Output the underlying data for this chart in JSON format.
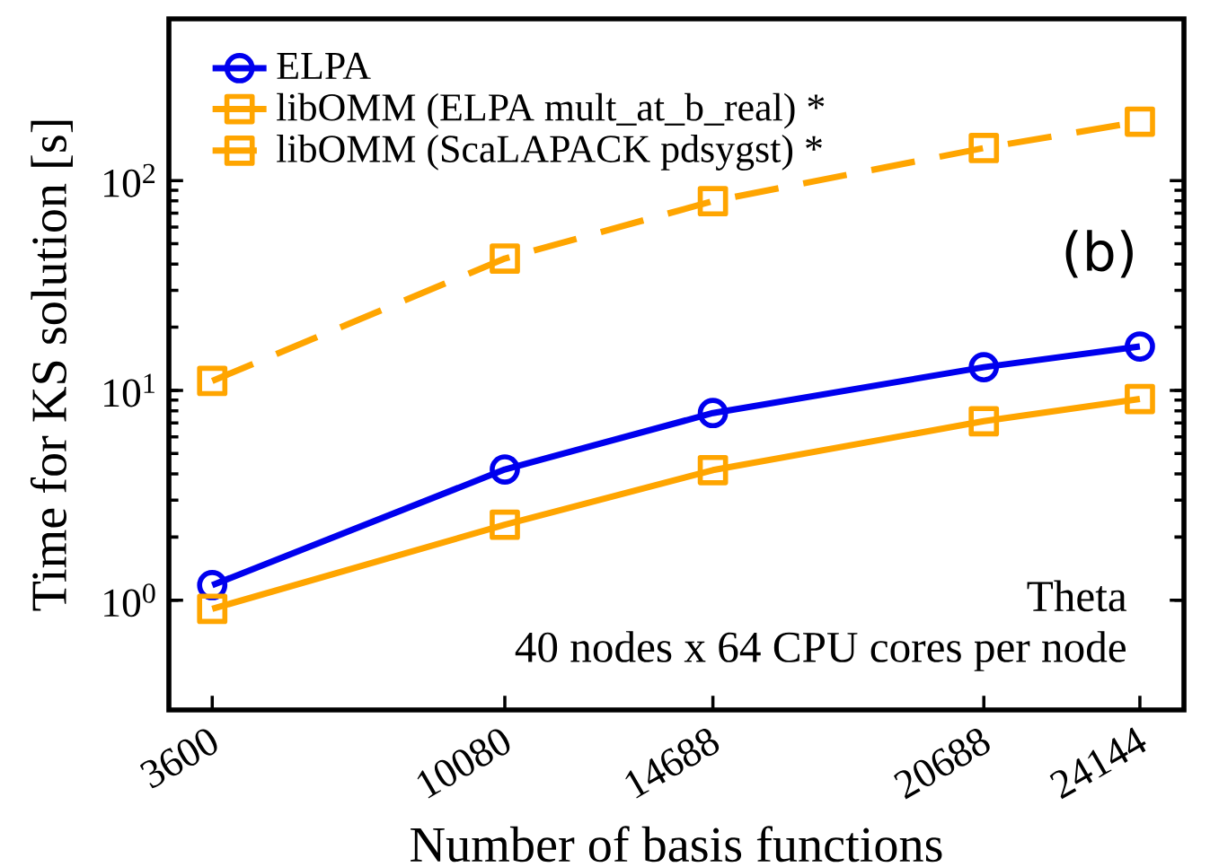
{
  "chart_data": {
    "type": "line",
    "xlabel": "Number of basis functions",
    "ylabel": "Time for KS solution [s]",
    "x": [
      3600,
      10080,
      14688,
      20688,
      24144
    ],
    "series": [
      {
        "name": "ELPA",
        "color": "#0000ee",
        "marker": "circle",
        "line_style": "solid",
        "values": [
          1.18,
          4.2,
          7.8,
          12.9,
          16.2
        ]
      },
      {
        "name": "libOMM (ELPA mult_at_b_real) *",
        "color": "#ffa500",
        "marker": "square",
        "line_style": "solid",
        "values": [
          0.91,
          2.29,
          4.17,
          7.13,
          9.1
        ]
      },
      {
        "name": "libOMM (ScaLAPACK pdsygst) *",
        "color": "#ffa500",
        "marker": "square",
        "line_style": "dashed",
        "values": [
          11.1,
          42.5,
          79.8,
          143,
          191
        ]
      }
    ],
    "log": "y",
    "xlim": [
      2640,
      25120
    ],
    "ylim": [
      0.3,
      590
    ],
    "xticks": [
      3600,
      10080,
      14688,
      20688,
      24144
    ],
    "yticks": [
      {
        "value": 1,
        "label": "10$^{0}$"
      },
      {
        "value": 10,
        "label": "10$^{1}$"
      },
      {
        "value": 100,
        "label": "10$^{2}$"
      }
    ],
    "legend": "top left",
    "grid": false,
    "annotations": [
      "(b)",
      "Theta",
      "40 nodes x 64 CPU cores per node"
    ]
  }
}
